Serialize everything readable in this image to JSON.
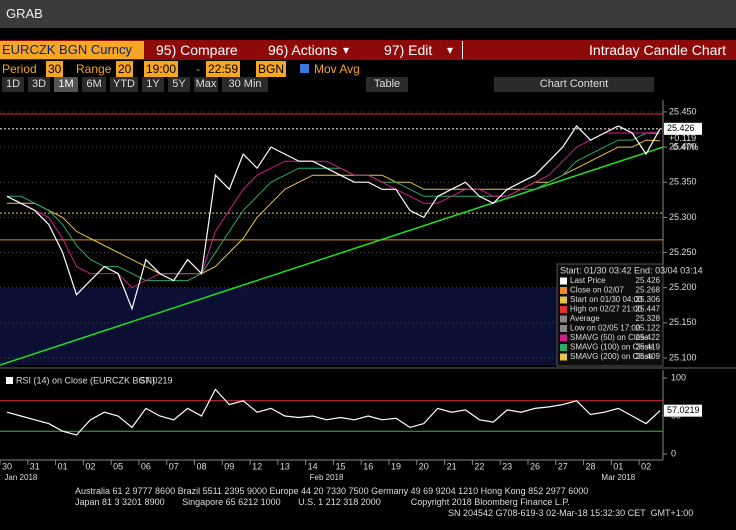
{
  "window_title": "GRAB",
  "toolbar": {
    "security": "EURCZK BGN Curncy",
    "menu": [
      "95) Compare",
      "96) Actions",
      "97) Edit"
    ],
    "chart_name": "Intraday Candle Chart"
  },
  "settings": {
    "period_label": "Period",
    "period": "30",
    "range_label": "Range",
    "range": "20",
    "from": "19:00",
    "dash": "-",
    "to": "22:59",
    "source": "BGN",
    "mov_avg": "Mov Avg"
  },
  "buttons": [
    "1D",
    "3D",
    "1M",
    "6M",
    "YTD",
    "1Y",
    "5Y",
    "Max",
    "30 Min",
    "Table",
    "Chart Content"
  ],
  "chart_data": [
    {
      "type": "line",
      "categories": [
        "30",
        null,
        "31",
        null,
        "01",
        null,
        "02",
        null,
        "05",
        null,
        "06",
        null,
        "07",
        null,
        "08",
        null,
        "09",
        null,
        "12",
        null,
        "13",
        null,
        "14",
        null,
        "15",
        null,
        "16",
        null,
        "19",
        null,
        "20",
        null,
        "21",
        null,
        "22",
        null,
        "23",
        null,
        "26",
        null,
        "27",
        null,
        "28",
        null,
        "01",
        null,
        "02",
        null
      ],
      "x_groups": [
        "Jan 2018",
        "Feb 2018",
        "Mar 2018"
      ],
      "series": [
        {
          "name": "Price",
          "color": "#ffffff",
          "values": [
            25.33,
            25.32,
            25.31,
            25.29,
            25.25,
            25.19,
            25.21,
            25.23,
            25.22,
            25.17,
            25.24,
            25.22,
            25.21,
            25.24,
            25.22,
            25.36,
            25.34,
            25.39,
            25.37,
            25.4,
            25.39,
            25.38,
            25.38,
            25.37,
            25.36,
            25.35,
            25.35,
            25.34,
            25.34,
            25.31,
            25.3,
            25.33,
            25.34,
            25.35,
            25.33,
            25.32,
            25.34,
            25.35,
            25.36,
            25.38,
            25.4,
            25.43,
            25.41,
            25.42,
            25.43,
            25.42,
            25.39,
            25.426
          ]
        },
        {
          "name": "SMAVG (50) on Close",
          "color": "#d01c8b",
          "values": [
            25.33,
            25.32,
            25.31,
            25.3,
            25.27,
            25.23,
            25.22,
            25.22,
            25.22,
            25.2,
            25.21,
            25.22,
            25.22,
            25.22,
            25.22,
            25.28,
            25.31,
            25.34,
            25.36,
            25.37,
            25.38,
            25.38,
            25.38,
            25.38,
            25.37,
            25.36,
            25.36,
            25.35,
            25.34,
            25.33,
            25.32,
            25.32,
            25.33,
            25.34,
            25.34,
            25.33,
            25.33,
            25.34,
            25.35,
            25.36,
            25.38,
            25.4,
            25.41,
            25.42,
            25.42,
            25.42,
            25.42,
            25.422
          ]
        },
        {
          "name": "SMAVG (100) on Close",
          "color": "#2fa86b",
          "values": [
            25.33,
            25.33,
            25.32,
            25.31,
            25.29,
            25.26,
            25.24,
            25.23,
            25.23,
            25.22,
            25.21,
            25.21,
            25.21,
            25.21,
            25.22,
            25.25,
            25.28,
            25.31,
            25.33,
            25.35,
            25.36,
            25.37,
            25.37,
            25.37,
            25.37,
            25.36,
            25.36,
            25.35,
            25.35,
            25.34,
            25.33,
            25.33,
            25.33,
            25.33,
            25.33,
            25.33,
            25.33,
            25.34,
            25.34,
            25.35,
            25.36,
            25.38,
            25.39,
            25.4,
            25.41,
            25.41,
            25.42,
            25.419
          ]
        },
        {
          "name": "SMAVG (200) on Close",
          "color": "#e8c34a",
          "values": [
            25.32,
            25.32,
            25.32,
            25.31,
            25.3,
            25.28,
            25.27,
            25.26,
            25.25,
            25.24,
            25.23,
            25.22,
            25.22,
            25.22,
            25.22,
            25.23,
            25.25,
            25.27,
            25.3,
            25.32,
            25.34,
            25.35,
            25.36,
            25.36,
            25.36,
            25.36,
            25.36,
            25.36,
            25.35,
            25.35,
            25.34,
            25.34,
            25.34,
            25.34,
            25.34,
            25.34,
            25.34,
            25.34,
            25.35,
            25.35,
            25.36,
            25.37,
            25.38,
            25.39,
            25.4,
            25.4,
            25.41,
            25.409
          ]
        }
      ],
      "trendline": {
        "color": "#22dd22",
        "values": [
          25.09,
          25.4
        ]
      },
      "ylim": [
        25.09,
        25.467
      ],
      "yticks": [
        {
          "value": 25.1,
          "label": "25.100"
        },
        {
          "value": 25.15,
          "label": "25.150"
        },
        {
          "value": 25.2,
          "label": "25.200"
        },
        {
          "value": 25.25,
          "label": "25.250"
        },
        {
          "value": 25.3,
          "label": "25.300"
        },
        {
          "value": 25.35,
          "label": "25.350"
        },
        {
          "value": 25.4,
          "label": "25.400"
        },
        {
          "value": 25.45,
          "label": "25.450"
        }
      ],
      "grid": true,
      "change": {
        "value": 0.119,
        "label": "+0.119"
      },
      "change_pct": {
        "value": 0.47,
        "label": "0.47%"
      },
      "legend_header": "Start: 01/30 03:42 End: 03/04 03:14",
      "stats": [
        {
          "label": "Last Price",
          "value": 25.426,
          "color": "#ffffff",
          "line": true
        },
        {
          "label": "Close on 02/07",
          "value": 25.268,
          "color": "#f08a24",
          "line": true
        },
        {
          "label": "Start on 01/30 04:00",
          "value": 25.306,
          "color": "#e8c34a",
          "line": true
        },
        {
          "label": "High on 02/27 21:00",
          "value": 25.447,
          "color": "#e03030",
          "line": true
        },
        {
          "label": "Average",
          "value": 25.328,
          "color": "#888888",
          "line": false
        },
        {
          "label": "Low on 02/05 17:00",
          "value": 25.122,
          "color": "#888888",
          "line": false
        },
        {
          "label": "SMAVG (50) on Close",
          "value": 25.422,
          "color": "#d01c8b",
          "line": false
        },
        {
          "label": "SMAVG (100) on Close",
          "value": 25.419,
          "color": "#2fa86b",
          "line": false
        },
        {
          "label": "SMAVG (200) on Close",
          "value": 25.409,
          "color": "#e8c34a",
          "line": false
        }
      ]
    },
    {
      "type": "line",
      "title": "RSI (14) on Close (EURCZK BGN)",
      "series": [
        {
          "name": "RSI (14)",
          "color": "#ffffff",
          "values": [
            55,
            50,
            45,
            40,
            30,
            25,
            45,
            55,
            50,
            35,
            60,
            50,
            45,
            60,
            50,
            85,
            65,
            70,
            55,
            60,
            50,
            48,
            50,
            45,
            48,
            45,
            50,
            45,
            47,
            35,
            40,
            60,
            55,
            58,
            45,
            42,
            58,
            55,
            60,
            62,
            65,
            70,
            52,
            55,
            60,
            50,
            40,
            57.0219
          ]
        }
      ],
      "levels": [
        {
          "value": 70,
          "color": "#e03030"
        },
        {
          "value": 30,
          "color": "#30c030"
        }
      ],
      "ylim": [
        0,
        100
      ],
      "yticks": [
        0,
        50,
        100
      ]
    }
  ],
  "footer": [
    "Australia 61 2 9777 8600 Brazil 5511 2395 9000 Europe 44 20 7330 7500 Germany 49 69 9204 1210 Hong Kong 852 2977 6000",
    "Japan 81 3 3201 8900       Singapore 65 6212 1000       U.S. 1 212 318 2000            Copyright 2018 Bloomberg Finance L.P.",
    "SN 204542 G708-619-3 02-Mar-18 15:32:30 CET  GMT+1:00"
  ]
}
